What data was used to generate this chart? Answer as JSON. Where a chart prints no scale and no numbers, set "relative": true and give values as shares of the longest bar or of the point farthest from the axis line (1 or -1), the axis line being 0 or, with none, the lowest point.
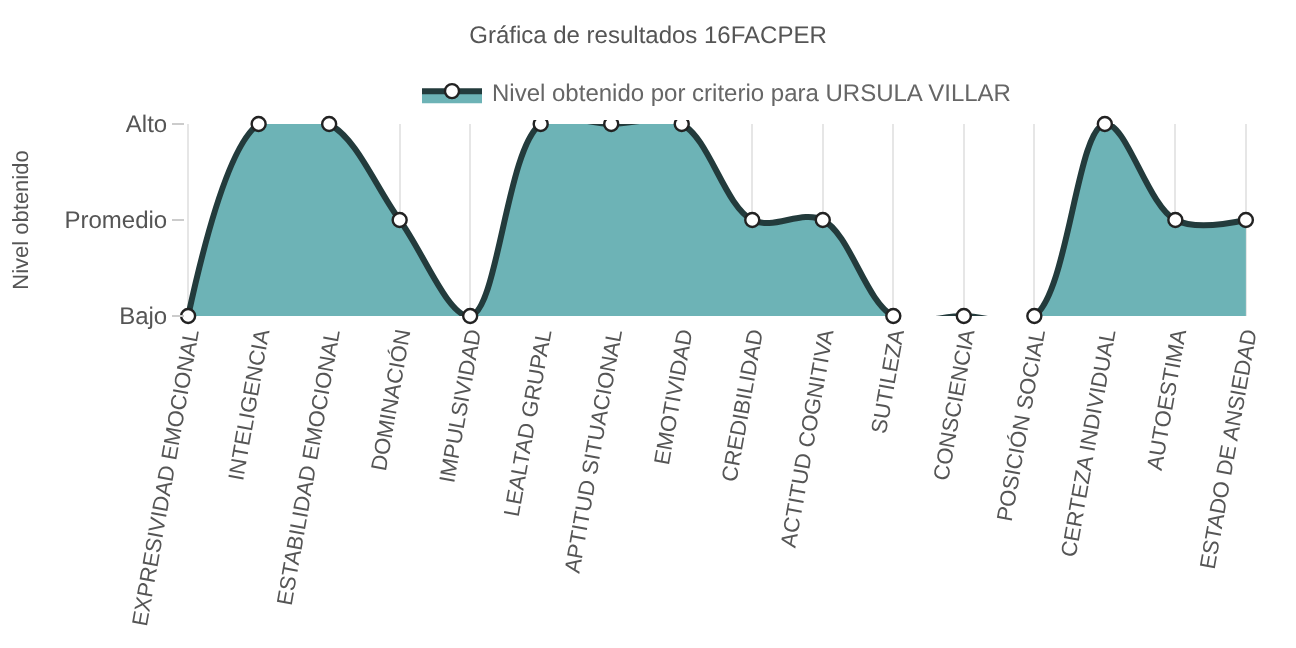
{
  "chart_data": {
    "type": "area",
    "title": "Gráfica de resultados 16FACPER",
    "ylabel": "Nivel obtenido",
    "relative": true,
    "categories": [
      "EXPRESIVIDAD EMOCIONAL",
      "INTELIGENCIA",
      "ESTABILIDAD EMOCIONAL",
      "DOMINACIÓN",
      "IMPULSIVIDAD",
      "LEALTAD GRUPAL",
      "APTITUD SITUACIONAL",
      "EMOTIVIDAD",
      "CREDIBILIDAD",
      "ACTITUD COGNITIVA",
      "SUTILEZA",
      "CONSCIENCIA",
      "POSICIÓN SOCIAL",
      "CERTEZA INDIVIDUAL",
      "AUTOESTIMA",
      "ESTADO DE ANSIEDAD"
    ],
    "y_categories": [
      "Alto",
      "Promedio",
      "Bajo"
    ],
    "series": [
      {
        "name": "Nivel obtenido por criterio para URSULA VILLAR",
        "color": "#6db3b6",
        "values": [
          0,
          1,
          1,
          0.5,
          0,
          1,
          1,
          1,
          0.5,
          0.5,
          0,
          0,
          0,
          1,
          0.5,
          0.5
        ]
      }
    ],
    "grid": "x",
    "legend": "top",
    "marker": "circle",
    "line_style": "solid"
  }
}
